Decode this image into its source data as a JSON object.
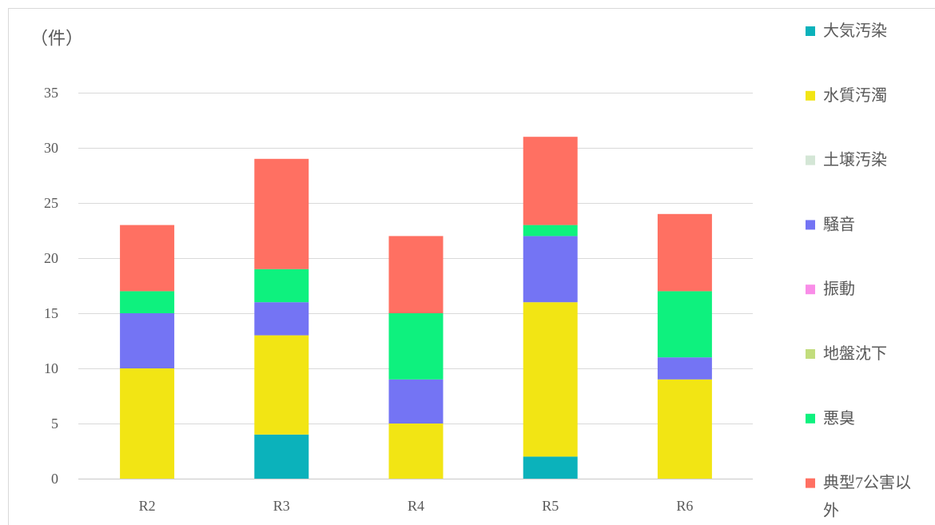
{
  "chart_data": {
    "type": "bar",
    "stacked": true,
    "categories": [
      "R2",
      "R3",
      "R4",
      "R5",
      "R6"
    ],
    "series": [
      {
        "name": "大気汚染",
        "color": "#0bb2bb",
        "values": [
          0,
          4,
          0,
          2,
          0
        ]
      },
      {
        "name": "水質汚濁",
        "color": "#f2e514",
        "values": [
          10,
          9,
          5,
          14,
          9
        ]
      },
      {
        "name": "土壌汚染",
        "color": "#d4e6d6",
        "values": [
          0,
          0,
          0,
          0,
          0
        ]
      },
      {
        "name": "騒音",
        "color": "#7474f4",
        "values": [
          5,
          3,
          4,
          6,
          2
        ]
      },
      {
        "name": "振動",
        "color": "#f98de8",
        "values": [
          0,
          0,
          0,
          0,
          0
        ]
      },
      {
        "name": "地盤沈下",
        "color": "#c2dd7d",
        "values": [
          0,
          0,
          0,
          0,
          0
        ]
      },
      {
        "name": "悪臭",
        "color": "#0ef17e",
        "values": [
          2,
          3,
          6,
          1,
          6
        ]
      },
      {
        "name": "典型7公害以外",
        "color": "#ff7062",
        "values": [
          6,
          10,
          7,
          8,
          7
        ]
      }
    ],
    "ylabel": "（件）",
    "xlabel": "",
    "ylim": [
      0,
      35
    ],
    "yticks": [
      0,
      5,
      10,
      15,
      20,
      25,
      30,
      35
    ],
    "grid": true,
    "legend": "right"
  }
}
